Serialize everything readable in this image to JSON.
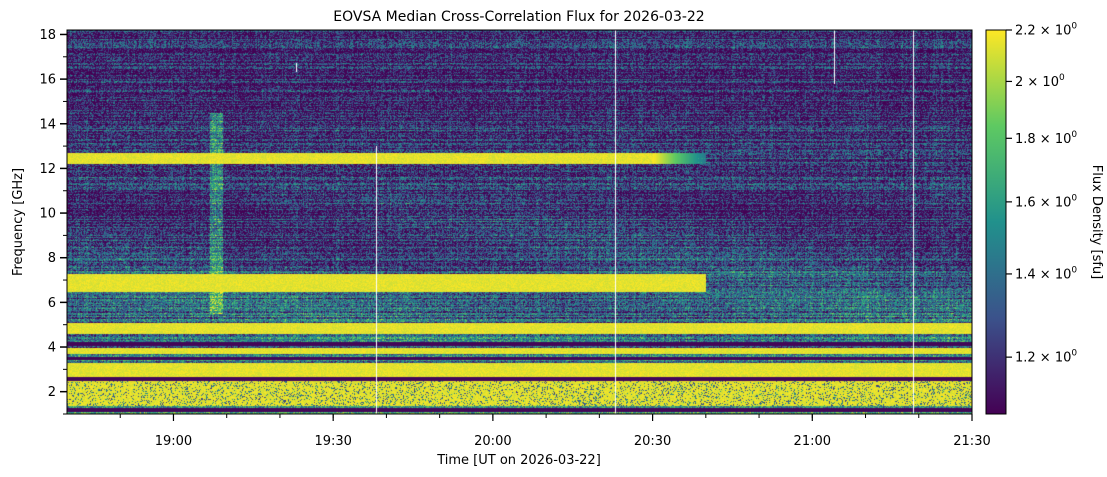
{
  "chart_data": {
    "type": "heatmap",
    "title": "EOVSA Median Cross-Correlation Flux for 2026-03-22",
    "xlabel": "Time [UT on 2026-03-22]",
    "ylabel": "Frequency [GHz]",
    "colorbar_label": "Flux Density [sfu]",
    "colormap": "viridis",
    "colormap_stops": [
      "#440154",
      "#3b528b",
      "#21918c",
      "#5ec962",
      "#fde725"
    ],
    "x_range": [
      "18:40",
      "21:30"
    ],
    "x_ticks": [
      "19:00",
      "19:30",
      "20:00",
      "20:30",
      "21:00",
      "21:30"
    ],
    "x_minor_step_minutes": 10,
    "y_range": [
      1.0,
      18.2
    ],
    "y_ticks": [
      "2",
      "4",
      "6",
      "8",
      "10",
      "12",
      "14",
      "16",
      "18"
    ],
    "color_scale": "log",
    "color_range": [
      1.08,
      2.2
    ],
    "colorbar_ticks": [
      {
        "value": 2.2,
        "base": "2.2 × 10",
        "exp": "0"
      },
      {
        "value": 2.0,
        "base": "2 × 10",
        "exp": "0"
      },
      {
        "value": 1.8,
        "base": "1.8 × 10",
        "exp": "0"
      },
      {
        "value": 1.6,
        "base": "1.6 × 10",
        "exp": "0"
      },
      {
        "value": 1.4,
        "base": "1.4 × 10",
        "exp": "0"
      },
      {
        "value": 1.2,
        "base": "1.2 × 10",
        "exp": "0"
      }
    ],
    "features": {
      "saturated_bands": [
        {
          "freq_range": [
            12.2,
            12.7
          ],
          "time_end": "20:30",
          "fade_end": "20:40"
        },
        {
          "freq_range": [
            1.4,
            2.5
          ],
          "time_end": "21:30"
        },
        {
          "freq_range": [
            3.7,
            4.0
          ],
          "time_end": "21:30"
        },
        {
          "freq_range": [
            2.7,
            3.3
          ],
          "time_end": "21:30"
        },
        {
          "freq_range": [
            4.6,
            5.1
          ],
          "time_end": "21:30"
        },
        {
          "freq_range": [
            6.5,
            7.3
          ],
          "time_end": "20:40"
        }
      ],
      "dark_bands": [
        3.5,
        2.6,
        4.15,
        1.2
      ],
      "white_gaps": [
        {
          "time": "19:38",
          "freq_range": [
            1.0,
            13.0
          ]
        },
        {
          "time": "20:23",
          "freq_range": [
            1.0,
            18.2
          ]
        },
        {
          "time": "21:19",
          "freq_range": [
            1.0,
            18.2
          ]
        },
        {
          "time": "21:04",
          "freq_range": [
            15.8,
            18.2
          ]
        },
        {
          "time": "19:23",
          "freq_range": [
            16.3,
            16.7
          ]
        }
      ],
      "enhancement": {
        "time": "19:08",
        "freq_range": [
          5.5,
          14.5
        ]
      }
    }
  }
}
